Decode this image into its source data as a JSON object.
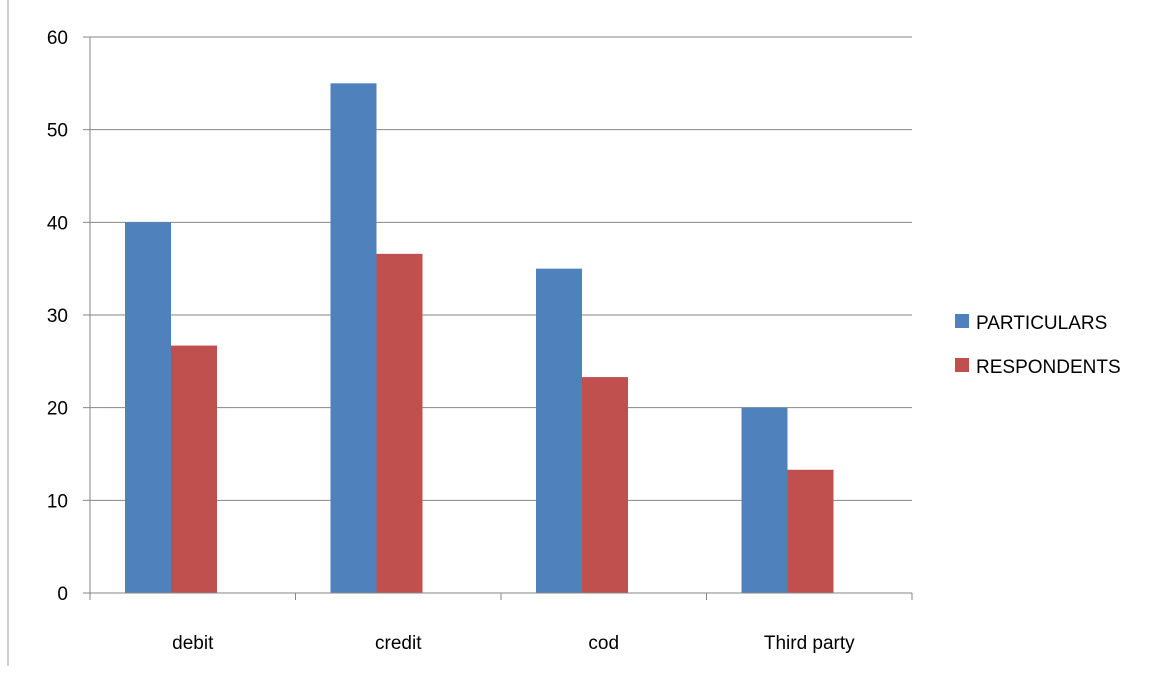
{
  "chart_data": {
    "type": "bar",
    "title": "",
    "xlabel": "",
    "ylabel": "",
    "categories": [
      "debit",
      "credit",
      "cod",
      "Third party"
    ],
    "series": [
      {
        "name": "PARTICULARS",
        "color": "#4F81BD",
        "values": [
          40,
          55,
          35,
          20
        ]
      },
      {
        "name": "RESPONDENTS",
        "color": "#C0504D",
        "values": [
          26.7,
          36.6,
          23.3,
          13.3
        ]
      }
    ],
    "ylim": [
      0,
      60
    ],
    "yticks": [
      0,
      10,
      20,
      30,
      40,
      50,
      60
    ],
    "grid": true,
    "legend_position": "right"
  }
}
